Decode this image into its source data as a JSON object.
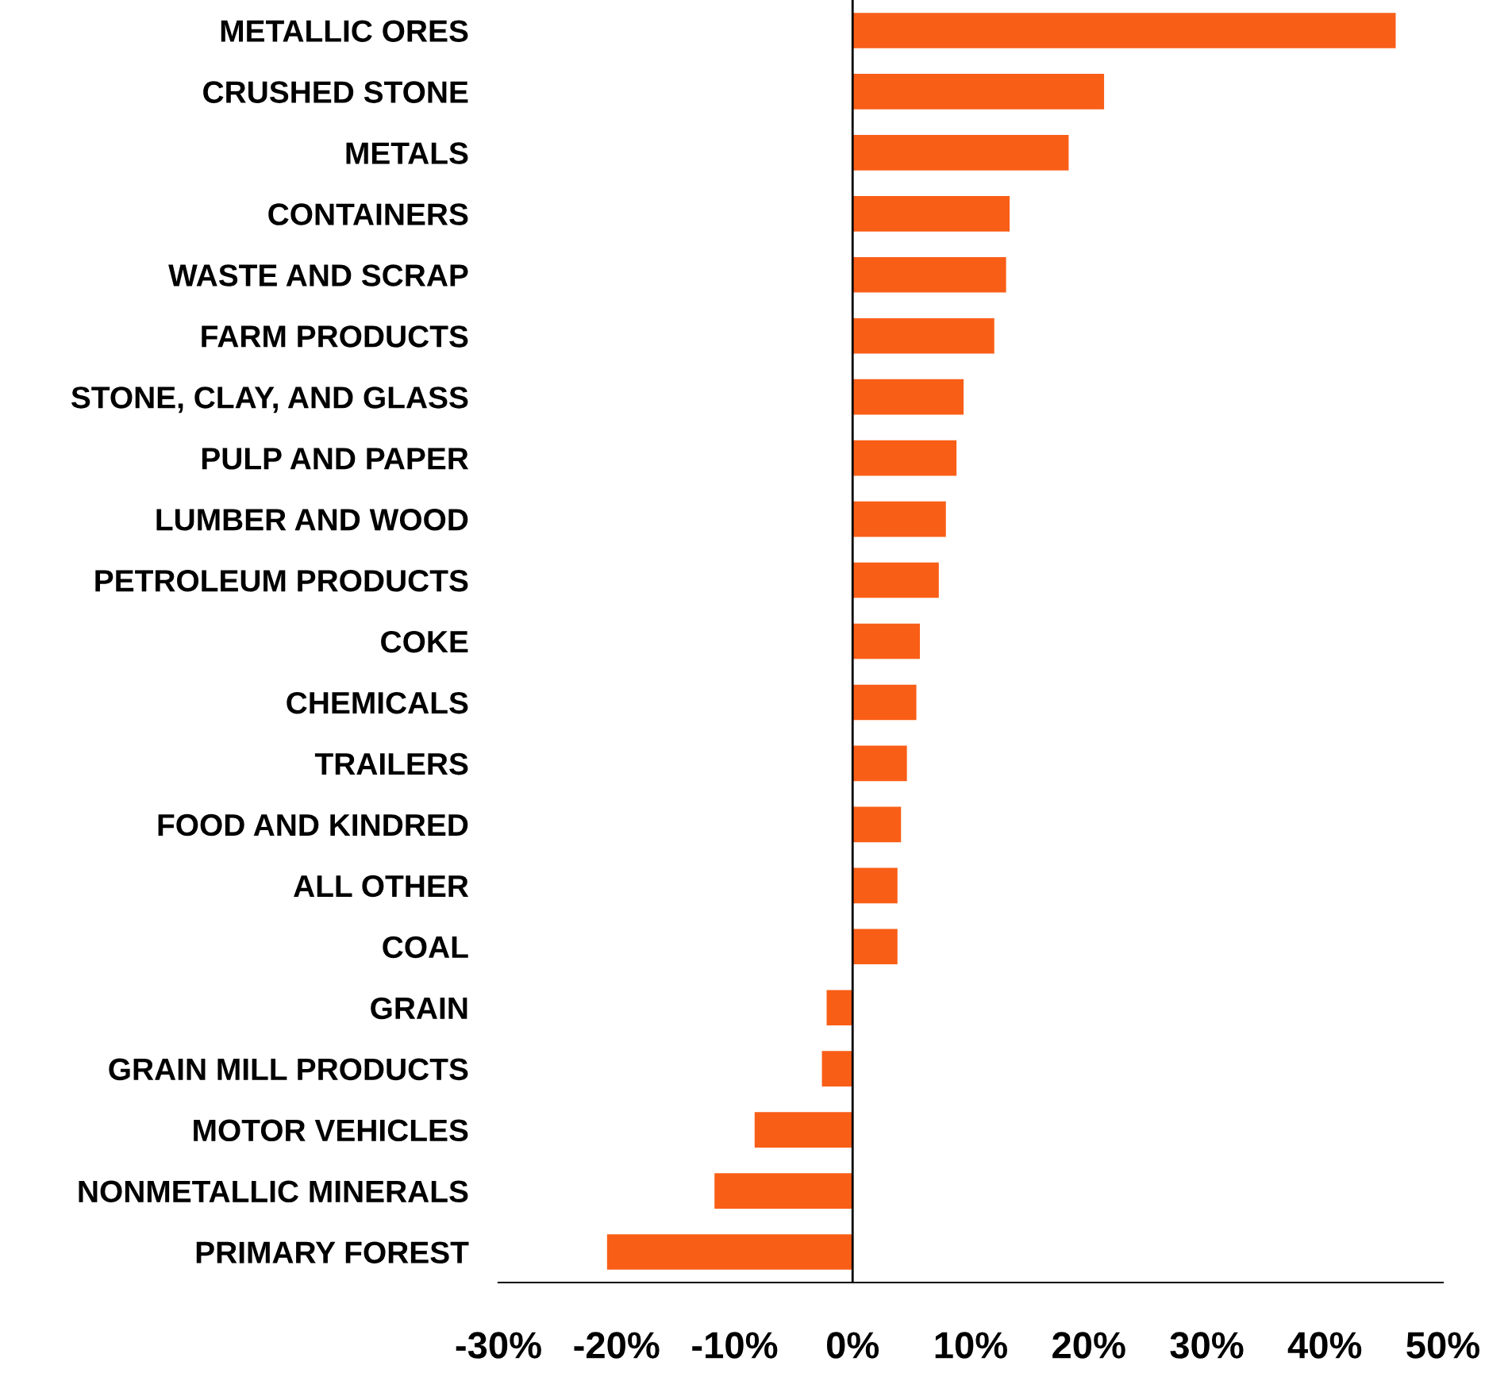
{
  "chart_data": {
    "type": "bar",
    "orientation": "horizontal",
    "categories": [
      "METALLIC ORES",
      "CRUSHED STONE",
      "METALS",
      "CONTAINERS",
      "WASTE AND SCRAP",
      "FARM PRODUCTS",
      "STONE, CLAY, AND GLASS",
      "PULP AND PAPER",
      "LUMBER AND WOOD",
      "PETROLEUM PRODUCTS",
      "COKE",
      "CHEMICALS",
      "TRAILERS",
      "FOOD AND KINDRED",
      "ALL OTHER",
      "COAL",
      "GRAIN",
      "GRAIN MILL PRODUCTS",
      "MOTOR VEHICLES",
      "NONMETALLIC MINERALS",
      "PRIMARY FOREST"
    ],
    "values": [
      46,
      21.3,
      18.3,
      13.3,
      13.0,
      12.0,
      9.4,
      8.8,
      7.9,
      7.3,
      5.7,
      5.4,
      4.6,
      4.1,
      3.8,
      3.8,
      -2.2,
      -2.6,
      -8.3,
      -11.7,
      -20.8
    ],
    "color": "#f95e17",
    "xlim": [
      -30,
      50
    ],
    "xticks": [
      {
        "value": -30,
        "label": "-30%"
      },
      {
        "value": -20,
        "label": "-20%"
      },
      {
        "value": -10,
        "label": "-10%"
      },
      {
        "value": 0,
        "label": "0%"
      },
      {
        "value": 10,
        "label": "10%"
      },
      {
        "value": 20,
        "label": "20%"
      },
      {
        "value": 30,
        "label": "30%"
      },
      {
        "value": 40,
        "label": "40%"
      },
      {
        "value": 50,
        "label": "50%"
      }
    ],
    "ref_lines": [
      {
        "axis": "x",
        "value": 0,
        "color": "#000000",
        "line_style": "solid"
      }
    ],
    "grid": false,
    "legend": false
  }
}
